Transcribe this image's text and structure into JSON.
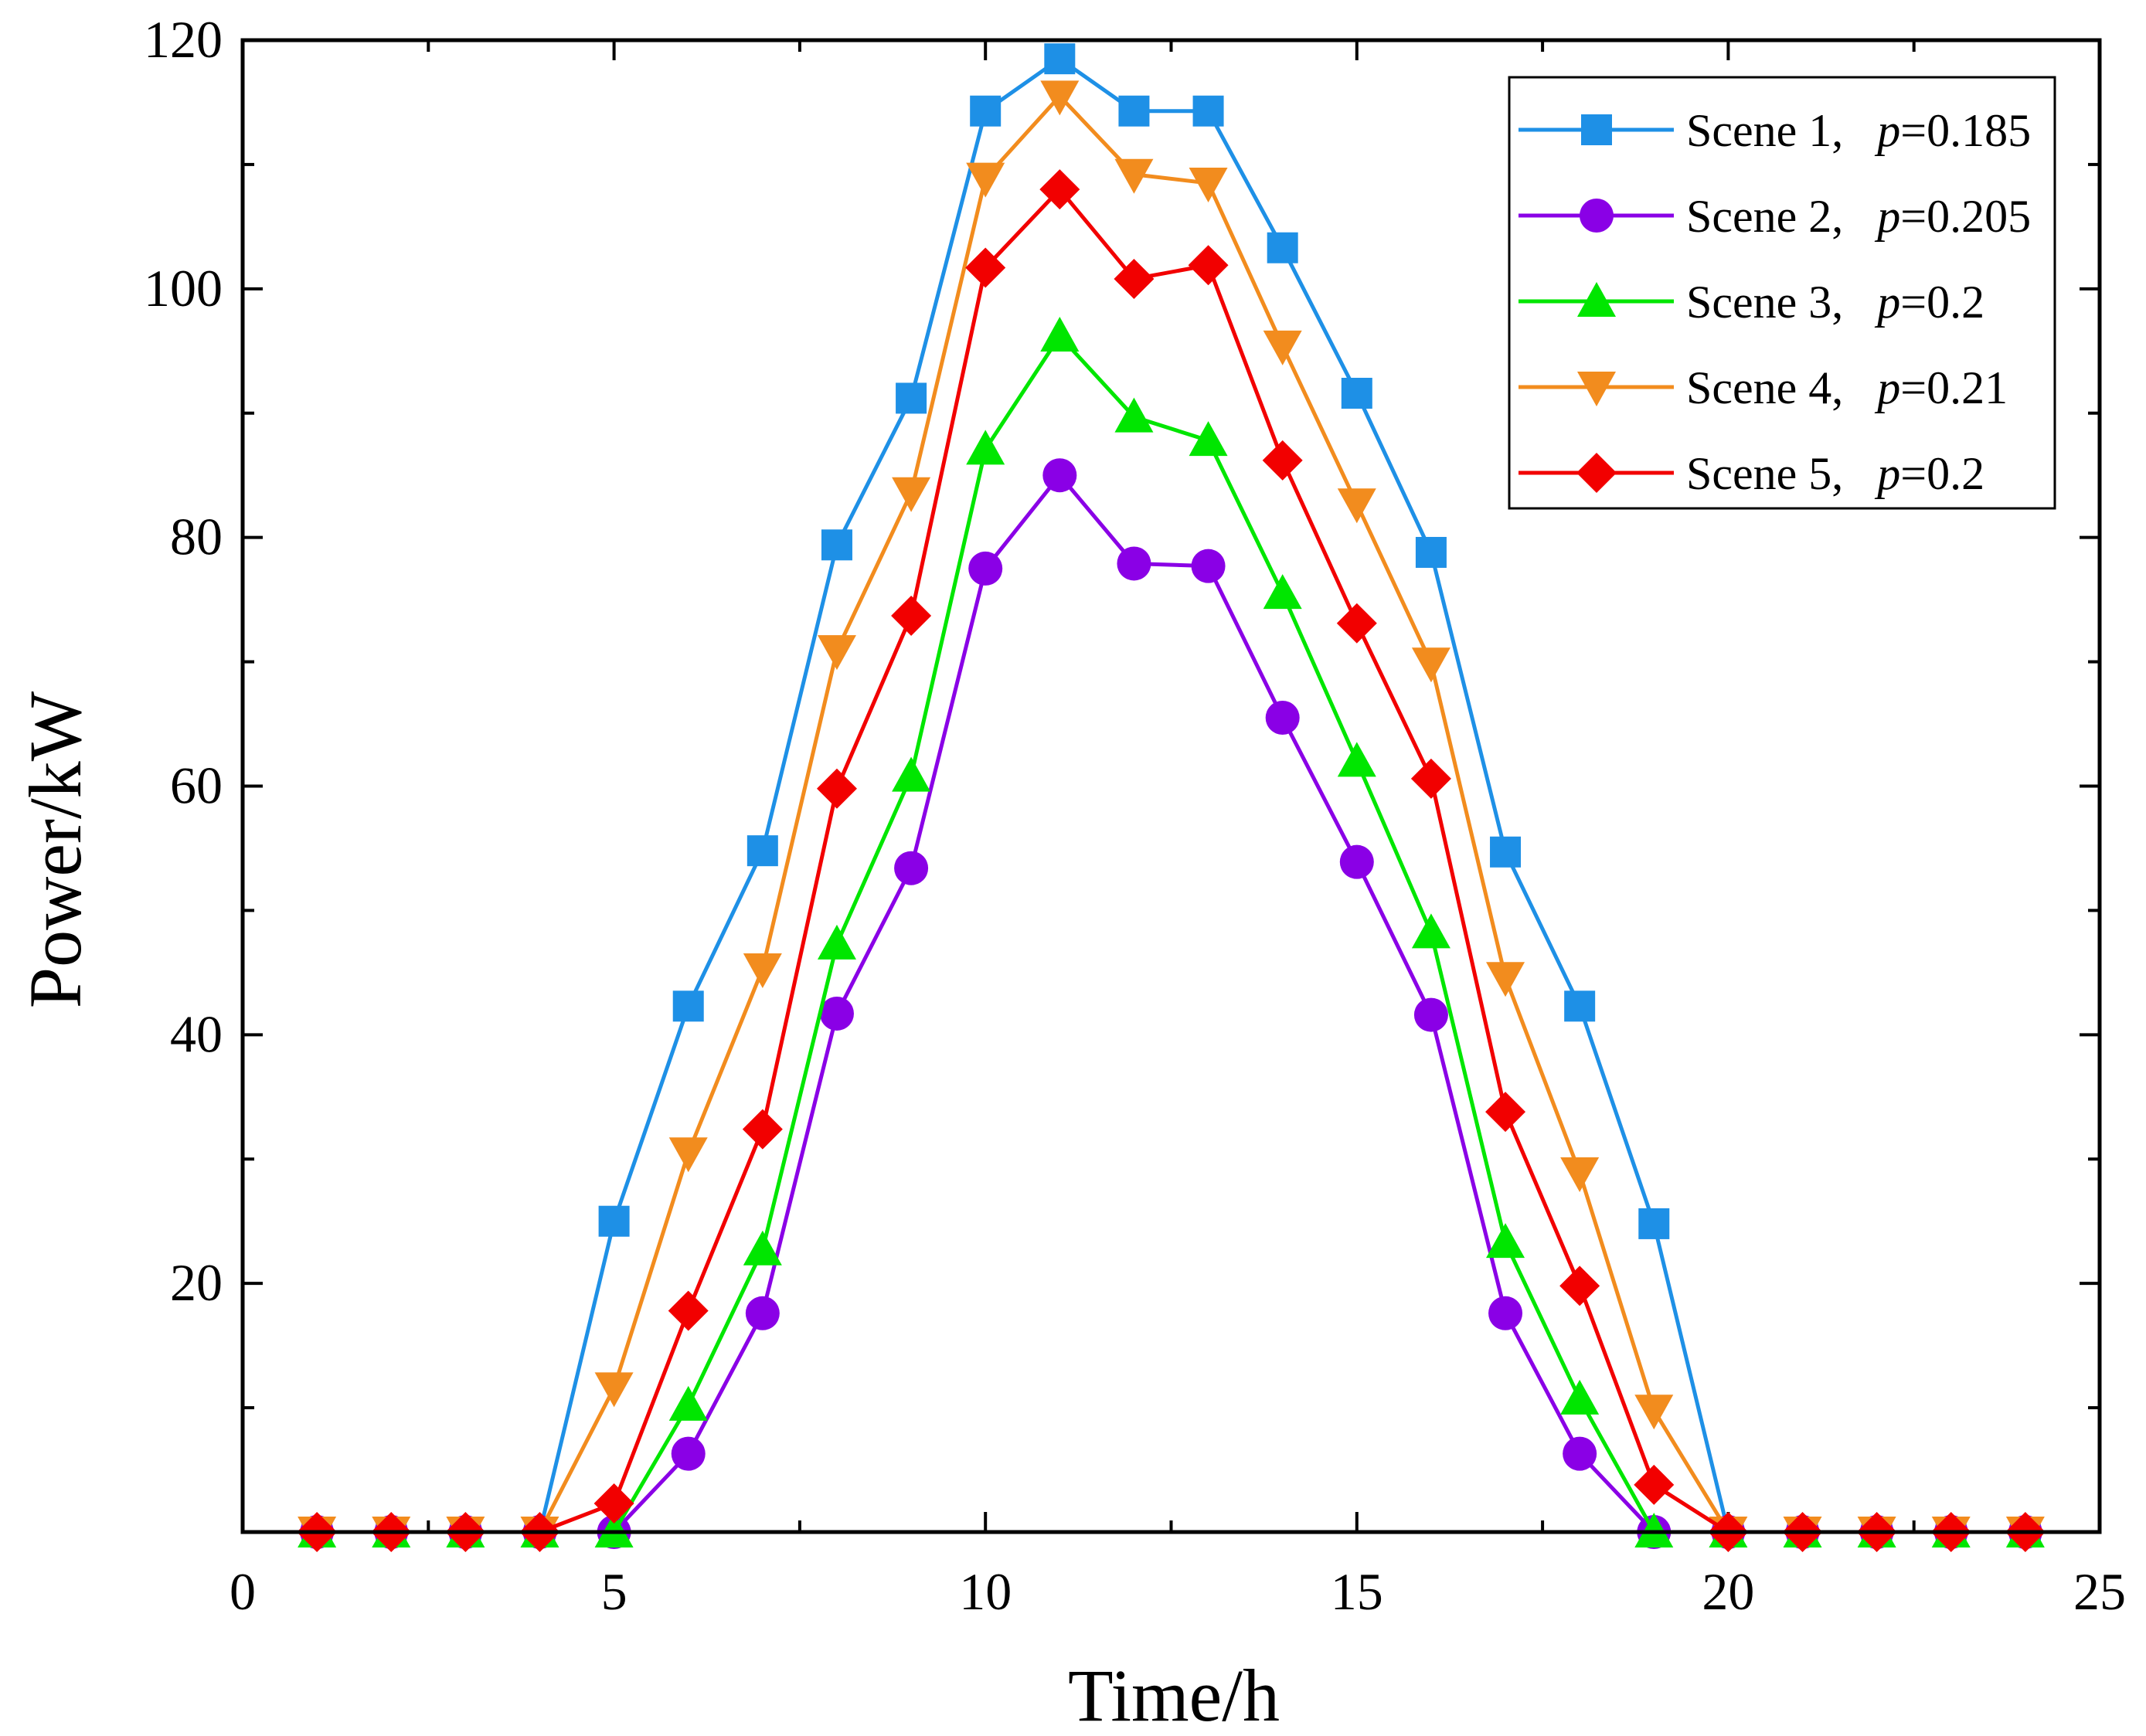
{
  "chart_data": {
    "type": "line",
    "title": "",
    "xlabel": "Time/h",
    "ylabel": "Power/kW",
    "xlim": [
      0,
      25
    ],
    "ylim": [
      0,
      120
    ],
    "xticks": [
      0,
      5,
      10,
      15,
      20,
      25
    ],
    "yticks": [
      20,
      40,
      60,
      80,
      100,
      120
    ],
    "grid": false,
    "legend_position": "top-right",
    "x": [
      1,
      2,
      3,
      4,
      5,
      6,
      7,
      8,
      9,
      10,
      11,
      12,
      13,
      14,
      15,
      16,
      17,
      18,
      19,
      20,
      21,
      22,
      23,
      24
    ],
    "series": [
      {
        "name": "Scene 1,",
        "p_label": "p",
        "p_value": "=0.185",
        "color": "#1E90E6",
        "marker": "square",
        "values": [
          0,
          0,
          0,
          0,
          25,
          42.3,
          54.8,
          79.4,
          91.2,
          114.3,
          118.5,
          114.3,
          114.3,
          103.3,
          91.6,
          78.8,
          54.7,
          42.3,
          24.8,
          0,
          0,
          0,
          0,
          0
        ]
      },
      {
        "name": "Scene 2,",
        "p_label": "p",
        "p_value": "=0.205",
        "color": "#8A00E6",
        "marker": "circle",
        "values": [
          0,
          0,
          0,
          0,
          0,
          6.3,
          17.6,
          41.7,
          53.4,
          77.5,
          85,
          77.9,
          77.7,
          65.5,
          53.9,
          41.6,
          17.6,
          6.3,
          0,
          0,
          0,
          0,
          0,
          0
        ]
      },
      {
        "name": "Scene 3,",
        "p_label": "p",
        "p_value": "=0.2",
        "color": "#00E600",
        "marker": "triangle-up",
        "values": [
          0,
          0,
          0,
          0,
          0,
          10.2,
          22.7,
          47.3,
          60.8,
          87.1,
          96.2,
          89.7,
          87.8,
          75.5,
          62,
          48.2,
          23.3,
          10.7,
          0,
          0,
          0,
          0,
          0,
          0
        ]
      },
      {
        "name": "Scene 4,",
        "p_label": "p",
        "p_value": "=0.21",
        "color": "#F28C1E",
        "marker": "triangle-down",
        "values": [
          0,
          0,
          0,
          0,
          11.6,
          30.5,
          45.3,
          70.9,
          83.6,
          108.9,
          115.5,
          109.2,
          108.5,
          95.4,
          82.7,
          69.9,
          44.6,
          28.9,
          9.8,
          0,
          0,
          0,
          0,
          0
        ]
      },
      {
        "name": "Scene 5,",
        "p_label": "p",
        "p_value": "=0.2",
        "color": "#F20000",
        "marker": "diamond",
        "values": [
          0,
          0,
          0,
          0,
          2.3,
          17.8,
          32.4,
          59.8,
          73.7,
          101.7,
          108,
          100.8,
          101.9,
          86.2,
          73.1,
          60.6,
          33.8,
          19.8,
          3.8,
          0,
          0,
          0,
          0,
          0
        ]
      }
    ]
  }
}
